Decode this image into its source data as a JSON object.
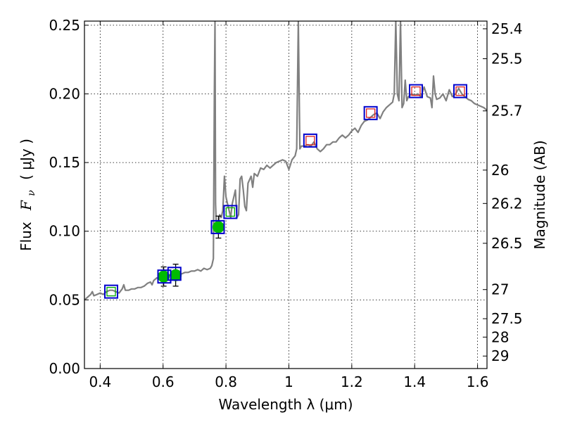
{
  "chart_data": {
    "type": "scatter",
    "xlabel": "Wavelength  λ (μm)",
    "ylabel_text": "Flux",
    "ylabel_symbol": "F",
    "ylabel_subscript": "ν",
    "ylabel_units": "( μJy )",
    "y2label": "Magnitude (AB)",
    "xlim": [
      0.35,
      1.63
    ],
    "ylim": [
      0.0,
      0.253
    ],
    "grid": true,
    "x_ticks": [
      {
        "value": 0.4,
        "label": "0.4"
      },
      {
        "value": 0.6,
        "label": "0.6"
      },
      {
        "value": 0.8,
        "label": "0.8"
      },
      {
        "value": 1.0,
        "label": "1"
      },
      {
        "value": 1.2,
        "label": "1.2"
      },
      {
        "value": 1.4,
        "label": "1.4"
      },
      {
        "value": 1.6,
        "label": "1.6"
      }
    ],
    "y_ticks": [
      {
        "value": 0.0,
        "label": "0.00"
      },
      {
        "value": 0.05,
        "label": "0.05"
      },
      {
        "value": 0.1,
        "label": "0.10"
      },
      {
        "value": 0.15,
        "label": "0.15"
      },
      {
        "value": 0.2,
        "label": "0.20"
      },
      {
        "value": 0.25,
        "label": "0.25"
      }
    ],
    "y2_ticks": [
      {
        "flux": 0.2474,
        "label": "25.4"
      },
      {
        "flux": 0.2256,
        "label": "25.5"
      },
      {
        "flux": 0.1876,
        "label": "25.7"
      },
      {
        "flux": 0.1445,
        "label": "26"
      },
      {
        "flux": 0.1202,
        "label": "26.2"
      },
      {
        "flux": 0.0912,
        "label": "26.5"
      },
      {
        "flux": 0.0575,
        "label": "27"
      },
      {
        "flux": 0.0363,
        "label": "27.5"
      },
      {
        "flux": 0.0229,
        "label": "28"
      },
      {
        "flux": 0.0091,
        "label": "29"
      }
    ],
    "model_spectrum": {
      "color": "#808080",
      "points": [
        [
          0.35,
          0.05
        ],
        [
          0.36,
          0.052
        ],
        [
          0.37,
          0.054
        ],
        [
          0.375,
          0.056
        ],
        [
          0.38,
          0.053
        ],
        [
          0.39,
          0.054
        ],
        [
          0.4,
          0.055
        ],
        [
          0.41,
          0.054
        ],
        [
          0.42,
          0.056
        ],
        [
          0.43,
          0.057
        ],
        [
          0.44,
          0.057
        ],
        [
          0.45,
          0.056
        ],
        [
          0.46,
          0.055
        ],
        [
          0.47,
          0.058
        ],
        [
          0.475,
          0.061
        ],
        [
          0.48,
          0.057
        ],
        [
          0.49,
          0.057
        ],
        [
          0.5,
          0.058
        ],
        [
          0.51,
          0.058
        ],
        [
          0.52,
          0.059
        ],
        [
          0.53,
          0.059
        ],
        [
          0.54,
          0.06
        ],
        [
          0.55,
          0.062
        ],
        [
          0.56,
          0.063
        ],
        [
          0.565,
          0.061
        ],
        [
          0.57,
          0.064
        ],
        [
          0.58,
          0.066
        ],
        [
          0.59,
          0.065
        ],
        [
          0.6,
          0.067
        ],
        [
          0.61,
          0.066
        ],
        [
          0.62,
          0.068
        ],
        [
          0.63,
          0.068
        ],
        [
          0.64,
          0.068
        ],
        [
          0.65,
          0.069
        ],
        [
          0.66,
          0.069
        ],
        [
          0.67,
          0.07
        ],
        [
          0.68,
          0.07
        ],
        [
          0.69,
          0.071
        ],
        [
          0.7,
          0.071
        ],
        [
          0.71,
          0.072
        ],
        [
          0.72,
          0.071
        ],
        [
          0.73,
          0.073
        ],
        [
          0.74,
          0.072
        ],
        [
          0.75,
          0.073
        ],
        [
          0.755,
          0.075
        ],
        [
          0.76,
          0.08
        ],
        [
          0.763,
          0.2
        ],
        [
          0.765,
          0.253
        ],
        [
          0.767,
          0.12
        ],
        [
          0.77,
          0.1
        ],
        [
          0.775,
          0.105
        ],
        [
          0.78,
          0.112
        ],
        [
          0.785,
          0.11
        ],
        [
          0.79,
          0.115
        ],
        [
          0.795,
          0.14
        ],
        [
          0.8,
          0.125
        ],
        [
          0.805,
          0.12
        ],
        [
          0.81,
          0.115
        ],
        [
          0.815,
          0.11
        ],
        [
          0.82,
          0.12
        ],
        [
          0.83,
          0.13
        ],
        [
          0.835,
          0.11
        ],
        [
          0.84,
          0.112
        ],
        [
          0.845,
          0.138
        ],
        [
          0.85,
          0.14
        ],
        [
          0.855,
          0.13
        ],
        [
          0.86,
          0.118
        ],
        [
          0.865,
          0.115
        ],
        [
          0.87,
          0.135
        ],
        [
          0.88,
          0.14
        ],
        [
          0.885,
          0.132
        ],
        [
          0.89,
          0.142
        ],
        [
          0.9,
          0.14
        ],
        [
          0.91,
          0.146
        ],
        [
          0.92,
          0.145
        ],
        [
          0.93,
          0.148
        ],
        [
          0.94,
          0.146
        ],
        [
          0.95,
          0.148
        ],
        [
          0.96,
          0.15
        ],
        [
          0.97,
          0.151
        ],
        [
          0.98,
          0.152
        ],
        [
          0.99,
          0.151
        ],
        [
          1.0,
          0.145
        ],
        [
          1.01,
          0.152
        ],
        [
          1.02,
          0.155
        ],
        [
          1.025,
          0.16
        ],
        [
          1.03,
          0.253
        ],
        [
          1.035,
          0.16
        ],
        [
          1.04,
          0.162
        ],
        [
          1.05,
          0.162
        ],
        [
          1.06,
          0.163
        ],
        [
          1.07,
          0.162
        ],
        [
          1.08,
          0.165
        ],
        [
          1.09,
          0.16
        ],
        [
          1.1,
          0.158
        ],
        [
          1.11,
          0.16
        ],
        [
          1.12,
          0.163
        ],
        [
          1.13,
          0.163
        ],
        [
          1.14,
          0.165
        ],
        [
          1.15,
          0.165
        ],
        [
          1.16,
          0.168
        ],
        [
          1.17,
          0.17
        ],
        [
          1.18,
          0.168
        ],
        [
          1.19,
          0.17
        ],
        [
          1.2,
          0.173
        ],
        [
          1.21,
          0.175
        ],
        [
          1.22,
          0.172
        ],
        [
          1.23,
          0.177
        ],
        [
          1.24,
          0.18
        ],
        [
          1.25,
          0.181
        ],
        [
          1.26,
          0.183
        ],
        [
          1.27,
          0.185
        ],
        [
          1.28,
          0.186
        ],
        [
          1.29,
          0.182
        ],
        [
          1.3,
          0.187
        ],
        [
          1.31,
          0.19
        ],
        [
          1.32,
          0.192
        ],
        [
          1.33,
          0.194
        ],
        [
          1.335,
          0.2
        ],
        [
          1.34,
          0.253
        ],
        [
          1.345,
          0.2
        ],
        [
          1.35,
          0.195
        ],
        [
          1.355,
          0.253
        ],
        [
          1.36,
          0.19
        ],
        [
          1.365,
          0.193
        ],
        [
          1.37,
          0.21
        ],
        [
          1.375,
          0.195
        ],
        [
          1.38,
          0.198
        ],
        [
          1.39,
          0.2
        ],
        [
          1.4,
          0.199
        ],
        [
          1.41,
          0.2
        ],
        [
          1.42,
          0.198
        ],
        [
          1.43,
          0.205
        ],
        [
          1.44,
          0.198
        ],
        [
          1.45,
          0.197
        ],
        [
          1.455,
          0.19
        ],
        [
          1.46,
          0.213
        ],
        [
          1.465,
          0.2
        ],
        [
          1.47,
          0.196
        ],
        [
          1.48,
          0.197
        ],
        [
          1.49,
          0.2
        ],
        [
          1.5,
          0.195
        ],
        [
          1.51,
          0.203
        ],
        [
          1.52,
          0.198
        ],
        [
          1.53,
          0.2
        ],
        [
          1.54,
          0.204
        ],
        [
          1.55,
          0.2
        ],
        [
          1.56,
          0.198
        ],
        [
          1.57,
          0.196
        ],
        [
          1.58,
          0.195
        ],
        [
          1.59,
          0.193
        ],
        [
          1.6,
          0.192
        ],
        [
          1.61,
          0.191
        ],
        [
          1.62,
          0.19
        ],
        [
          1.63,
          0.188
        ]
      ]
    },
    "model_photometry": {
      "marker": "blue-square",
      "color": "#0000cc",
      "points": [
        {
          "x": 0.435,
          "y": 0.056
        },
        {
          "x": 0.604,
          "y": 0.067
        },
        {
          "x": 0.636,
          "y": 0.069
        },
        {
          "x": 0.774,
          "y": 0.103
        },
        {
          "x": 0.814,
          "y": 0.114
        },
        {
          "x": 1.068,
          "y": 0.166
        },
        {
          "x": 1.26,
          "y": 0.186
        },
        {
          "x": 1.404,
          "y": 0.202
        },
        {
          "x": 1.545,
          "y": 0.202
        }
      ]
    },
    "observed_ground": {
      "marker": "green-circle",
      "color": "#00bb00",
      "points": [
        {
          "x": 0.602,
          "y": 0.067,
          "err": 0.007
        },
        {
          "x": 0.64,
          "y": 0.068,
          "err": 0.008
        },
        {
          "x": 0.776,
          "y": 0.103,
          "err": 0.008
        }
      ]
    },
    "observed_hst": {
      "marker": "red-open-square",
      "color": "#dd2222",
      "points": [
        {
          "x": 1.068,
          "y": 0.166
        },
        {
          "x": 1.26,
          "y": 0.186
        },
        {
          "x": 1.404,
          "y": 0.202
        },
        {
          "x": 1.545,
          "y": 0.202
        }
      ]
    },
    "optical_open_squares": {
      "marker": "green-open-square",
      "color": "#00aa00",
      "points": [
        {
          "x": 0.435,
          "y": 0.056
        },
        {
          "x": 0.814,
          "y": 0.114
        }
      ]
    }
  }
}
